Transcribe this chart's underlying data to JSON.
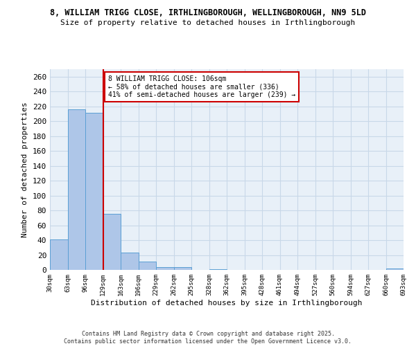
{
  "title_line1": "8, WILLIAM TRIGG CLOSE, IRTHLINGBOROUGH, WELLINGBOROUGH, NN9 5LD",
  "title_line2": "Size of property relative to detached houses in Irthlingborough",
  "xlabel": "Distribution of detached houses by size in Irthlingborough",
  "ylabel": "Number of detached properties",
  "bar_values": [
    41,
    216,
    211,
    75,
    23,
    11,
    4,
    4,
    0,
    1,
    0,
    0,
    0,
    0,
    0,
    0,
    0,
    0,
    0,
    2
  ],
  "categories": [
    "30sqm",
    "63sqm",
    "96sqm",
    "129sqm",
    "163sqm",
    "196sqm",
    "229sqm",
    "262sqm",
    "295sqm",
    "328sqm",
    "362sqm",
    "395sqm",
    "428sqm",
    "461sqm",
    "494sqm",
    "527sqm",
    "560sqm",
    "594sqm",
    "627sqm",
    "660sqm",
    "693sqm"
  ],
  "bar_color": "#aec6e8",
  "bar_edge_color": "#5a9fd4",
  "vline_x_bar_index": 2,
  "vline_color": "#cc0000",
  "annotation_text": "8 WILLIAM TRIGG CLOSE: 106sqm\n← 58% of detached houses are smaller (336)\n41% of semi-detached houses are larger (239) →",
  "annotation_box_color": "white",
  "annotation_box_edge": "#cc0000",
  "ylim": [
    0,
    270
  ],
  "yticks": [
    0,
    20,
    40,
    60,
    80,
    100,
    120,
    140,
    160,
    180,
    200,
    220,
    240,
    260
  ],
  "grid_color": "#c8d8e8",
  "bg_color": "#e8f0f8",
  "footer_line1": "Contains HM Land Registry data © Crown copyright and database right 2025.",
  "footer_line2": "Contains public sector information licensed under the Open Government Licence v3.0."
}
